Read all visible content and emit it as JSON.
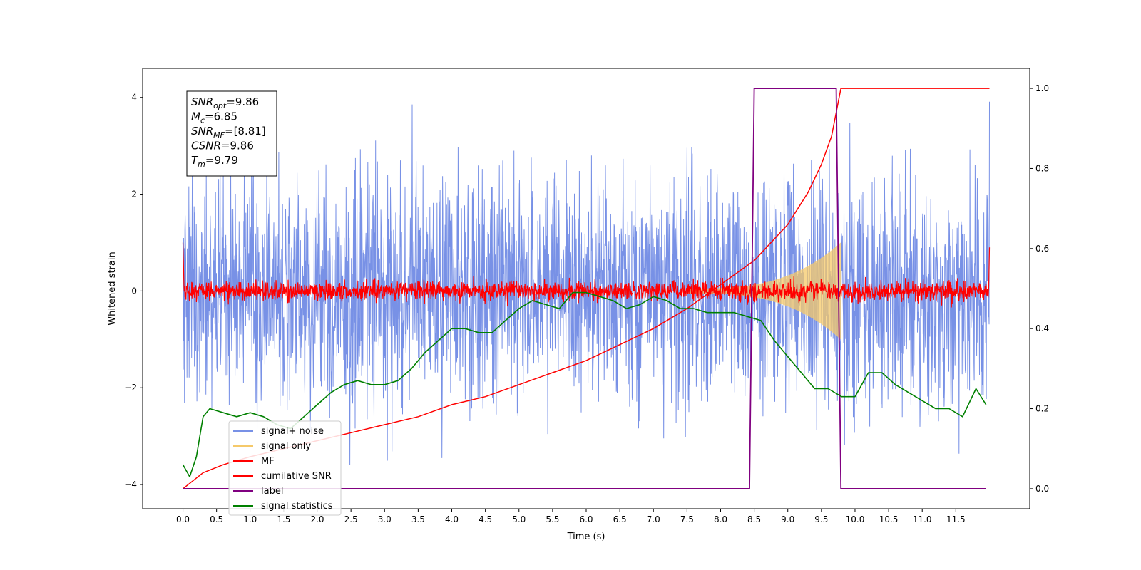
{
  "chart_data": {
    "type": "line",
    "xlabel": "Time (s)",
    "ylabel": "Whitened strain",
    "xlim": [
      -0.6,
      12.6
    ],
    "ylim": [
      -4.5,
      4.6
    ],
    "y2lim": [
      -0.05,
      1.05
    ],
    "x_ticks": [
      0.0,
      0.5,
      1.0,
      1.5,
      2.0,
      2.5,
      3.0,
      3.5,
      4.0,
      4.5,
      5.0,
      5.5,
      6.0,
      6.5,
      7.0,
      7.5,
      8.0,
      8.5,
      9.0,
      9.5,
      10.0,
      10.5,
      11.0,
      11.5
    ],
    "x_tick_labels": [
      "0.0",
      "0.5",
      "1.0",
      "1.5",
      "2.0",
      "2.5",
      "3.0",
      "3.5",
      "4.0",
      "4.5",
      "5.0",
      "5.5",
      "6.0",
      "6.5",
      "7.0",
      "7.5",
      "8.0",
      "8.5",
      "9.0",
      "9.5",
      "10.0",
      "10.5",
      "11.0",
      "11.5"
    ],
    "y_ticks": [
      4,
      2,
      0,
      -2,
      -4
    ],
    "y_tick_labels": [
      "4",
      "2",
      "0",
      "−2",
      "−4"
    ],
    "y2_ticks": [
      1.0,
      0.8,
      0.6,
      0.4,
      0.2,
      0.0
    ],
    "y2_tick_labels": [
      "1.0",
      "0.8",
      "0.6",
      "0.4",
      "0.2",
      "0.0"
    ],
    "grid": false,
    "legend_position": "bottom-left",
    "legend": [
      {
        "label": "signal+ noise",
        "color": "#7891e6"
      },
      {
        "label": "signal only",
        "color": "#f5c96a"
      },
      {
        "label": "MF",
        "color": "#ff0000"
      },
      {
        "label": "cumilative SNR",
        "color": "#ff0000"
      },
      {
        "label": "label",
        "color": "#800080"
      },
      {
        "label": "signal statistics",
        "color": "#008000"
      }
    ],
    "annotation": {
      "lines": [
        {
          "var": "SNR",
          "sub": "opt",
          "value": "=9.86"
        },
        {
          "var": "M",
          "sub": "c",
          "value": "=6.85"
        },
        {
          "var": "SNR",
          "sub": "MF",
          "value": "=[8.81]"
        },
        {
          "var": "CSNR",
          "sub": "",
          "value": "=9.86"
        },
        {
          "var": "T",
          "sub": "m",
          "value": "=9.79"
        }
      ]
    },
    "series": [
      {
        "name": "signal+ noise",
        "axis": "left",
        "color": "#7891e6",
        "kind": "noise",
        "x_range": [
          0.0,
          12.0
        ],
        "amplitude_typical": 2.4,
        "amplitude_max": 4.17
      },
      {
        "name": "signal only",
        "axis": "left",
        "color": "#f5c96a",
        "kind": "chirp",
        "x_range": [
          7.5,
          9.79
        ],
        "amplitude_start": 0.05,
        "amplitude_end": 1.0
      },
      {
        "name": "MF",
        "axis": "left",
        "color": "#ff0000",
        "kind": "noise",
        "x_range": [
          0.0,
          12.0
        ],
        "amplitude_typical": 0.3
      },
      {
        "name": "cumilative SNR",
        "axis": "right",
        "color": "#ff0000",
        "x": [
          0.0,
          0.3,
          0.6,
          1.0,
          1.5,
          2.0,
          2.5,
          3.0,
          3.5,
          4.0,
          4.5,
          5.0,
          5.5,
          6.0,
          6.5,
          7.0,
          7.5,
          8.0,
          8.5,
          9.0,
          9.3,
          9.5,
          9.65,
          9.79,
          12.0
        ],
        "y": [
          0.0,
          0.04,
          0.06,
          0.08,
          0.1,
          0.12,
          0.14,
          0.16,
          0.18,
          0.21,
          0.23,
          0.26,
          0.29,
          0.32,
          0.36,
          0.4,
          0.45,
          0.51,
          0.57,
          0.66,
          0.74,
          0.81,
          0.88,
          1.0,
          1.0
        ]
      },
      {
        "name": "label",
        "axis": "right",
        "color": "#800080",
        "x": [
          0.0,
          8.43,
          8.5,
          9.72,
          9.79,
          11.95
        ],
        "y": [
          0.0,
          0.0,
          1.0,
          1.0,
          0.0,
          0.0
        ]
      },
      {
        "name": "signal statistics",
        "axis": "right",
        "color": "#008000",
        "x": [
          0.0,
          0.1,
          0.2,
          0.3,
          0.4,
          0.6,
          0.8,
          1.0,
          1.2,
          1.4,
          1.6,
          1.8,
          2.0,
          2.2,
          2.4,
          2.6,
          2.8,
          3.0,
          3.2,
          3.4,
          3.6,
          3.8,
          4.0,
          4.2,
          4.4,
          4.6,
          4.8,
          5.0,
          5.2,
          5.4,
          5.6,
          5.8,
          6.0,
          6.2,
          6.4,
          6.6,
          6.8,
          7.0,
          7.2,
          7.4,
          7.6,
          7.8,
          8.0,
          8.2,
          8.4,
          8.6,
          8.8,
          9.0,
          9.2,
          9.4,
          9.6,
          9.8,
          10.0,
          10.2,
          10.4,
          10.6,
          10.8,
          11.0,
          11.2,
          11.4,
          11.6,
          11.8,
          11.95
        ],
        "y": [
          0.06,
          0.03,
          0.08,
          0.18,
          0.2,
          0.19,
          0.18,
          0.19,
          0.18,
          0.16,
          0.15,
          0.18,
          0.21,
          0.24,
          0.26,
          0.27,
          0.26,
          0.26,
          0.27,
          0.3,
          0.34,
          0.37,
          0.4,
          0.4,
          0.39,
          0.39,
          0.42,
          0.45,
          0.47,
          0.46,
          0.45,
          0.49,
          0.49,
          0.48,
          0.47,
          0.45,
          0.46,
          0.48,
          0.47,
          0.45,
          0.45,
          0.44,
          0.44,
          0.44,
          0.43,
          0.42,
          0.37,
          0.33,
          0.29,
          0.25,
          0.25,
          0.23,
          0.23,
          0.29,
          0.29,
          0.26,
          0.24,
          0.22,
          0.2,
          0.2,
          0.18,
          0.25,
          0.21
        ]
      }
    ]
  }
}
